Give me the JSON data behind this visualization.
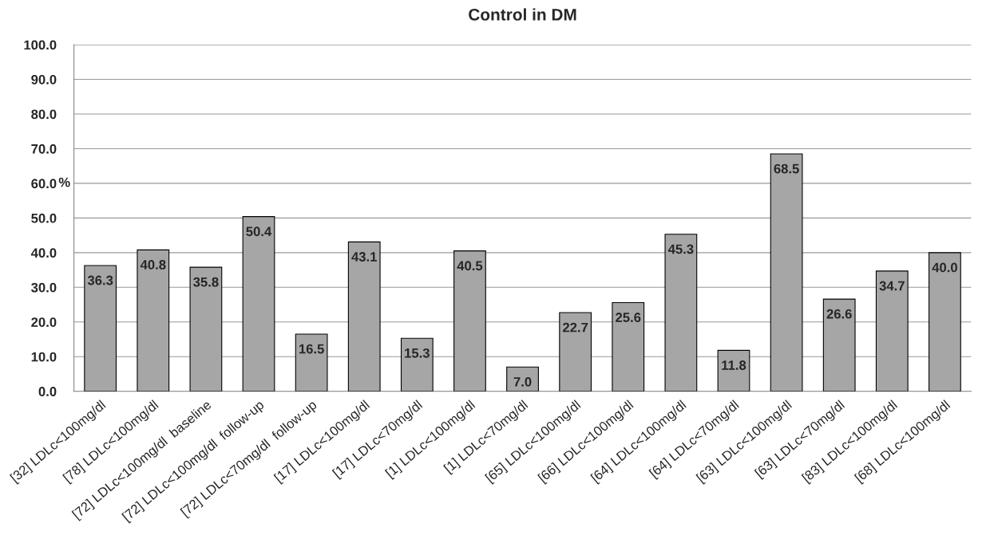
{
  "chart_data": {
    "type": "bar",
    "title": "Control in DM",
    "ylabel": "%",
    "categories": [
      "[32] LDLc<100mg/dl",
      "[78] LDLc<100mg/dl",
      "[72] LDLc<100mg/dl  baseline",
      "[72] LDLc<100mg/dl  follow-up",
      "[72] LDLc<70mg/dl  follow-up",
      "[17] LDLc<100mg/dl",
      "[17] LDLc<70mg/dl",
      "[1] LDLc<100mg/dl",
      "[1] LDLc<70mg/dl",
      "[65] LDLc<100mg/dl",
      "[66] LDLc<100mg/dl",
      "[64] LDLc<100mg/dl",
      "[64] LDLc<70mg/dl",
      "[63] LDLc<100mg/dl",
      "[63] LDLc<70mg/dl",
      "[83] LDLc<100mg/dl",
      "[68] LDLc<100mg/dl"
    ],
    "values": [
      36.3,
      40.8,
      35.8,
      50.4,
      16.5,
      43.1,
      15.3,
      40.5,
      7.0,
      22.7,
      25.6,
      45.3,
      11.8,
      68.5,
      26.6,
      34.7,
      40.0
    ],
    "color": "#a6a6a6",
    "value_labels": [
      "36.3",
      "40.8",
      "35.8",
      "50.4",
      "16.5",
      "43.1",
      "15.3",
      "40.5",
      "7.0",
      "22.7",
      "25.6",
      "45.3",
      "11.8",
      "68.5",
      "26.6",
      "34.7",
      "40.0"
    ],
    "grid": "y",
    "legend": false,
    "ylim": [
      0,
      100
    ],
    "yticks": [
      {
        "value": 0,
        "label": "0.0"
      },
      {
        "value": 10,
        "label": "10.0"
      },
      {
        "value": 20,
        "label": "20.0"
      },
      {
        "value": 30,
        "label": "30.0"
      },
      {
        "value": 40,
        "label": "40.0"
      },
      {
        "value": 50,
        "label": "50.0"
      },
      {
        "value": 60,
        "label": "60.0"
      },
      {
        "value": 70,
        "label": "70.0"
      },
      {
        "value": 80,
        "label": "80.0"
      },
      {
        "value": 90,
        "label": "90.0"
      },
      {
        "value": 100,
        "label": "100.0"
      }
    ]
  }
}
